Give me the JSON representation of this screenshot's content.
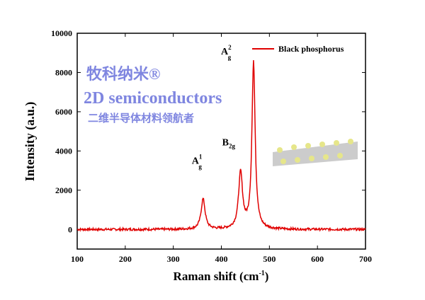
{
  "chart_data": {
    "type": "line",
    "title": "",
    "xlabel": "Raman shift (cm",
    "xlabel_sup": "-1",
    "xlabel_end": ")",
    "ylabel": "Intensity (a.u.)",
    "xlim": [
      100,
      700
    ],
    "ylim": [
      -1000,
      10000
    ],
    "xticks": [
      100,
      200,
      300,
      400,
      500,
      600,
      700
    ],
    "yticks": [
      0,
      2000,
      4000,
      6000,
      8000,
      10000
    ],
    "grid": false,
    "legend": {
      "position": "top-right",
      "entries": [
        "Black phosphorus"
      ]
    },
    "series": [
      {
        "name": "Black phosphorus",
        "color": "#e00000",
        "baseline": 0,
        "peaks": [
          {
            "x": 362,
            "y": 1550,
            "label": "A",
            "sup": "1",
            "sub": "g"
          },
          {
            "x": 440,
            "y": 2850,
            "label": "B",
            "sup": "",
            "sub": "2g"
          },
          {
            "x": 467,
            "y": 8550,
            "label": "A",
            "sup": "2",
            "sub": "g"
          }
        ]
      }
    ]
  },
  "watermark": {
    "brand": "牧科纳米®",
    "title": "2D semiconductors",
    "slogan": "二维半导体材料领航者"
  }
}
